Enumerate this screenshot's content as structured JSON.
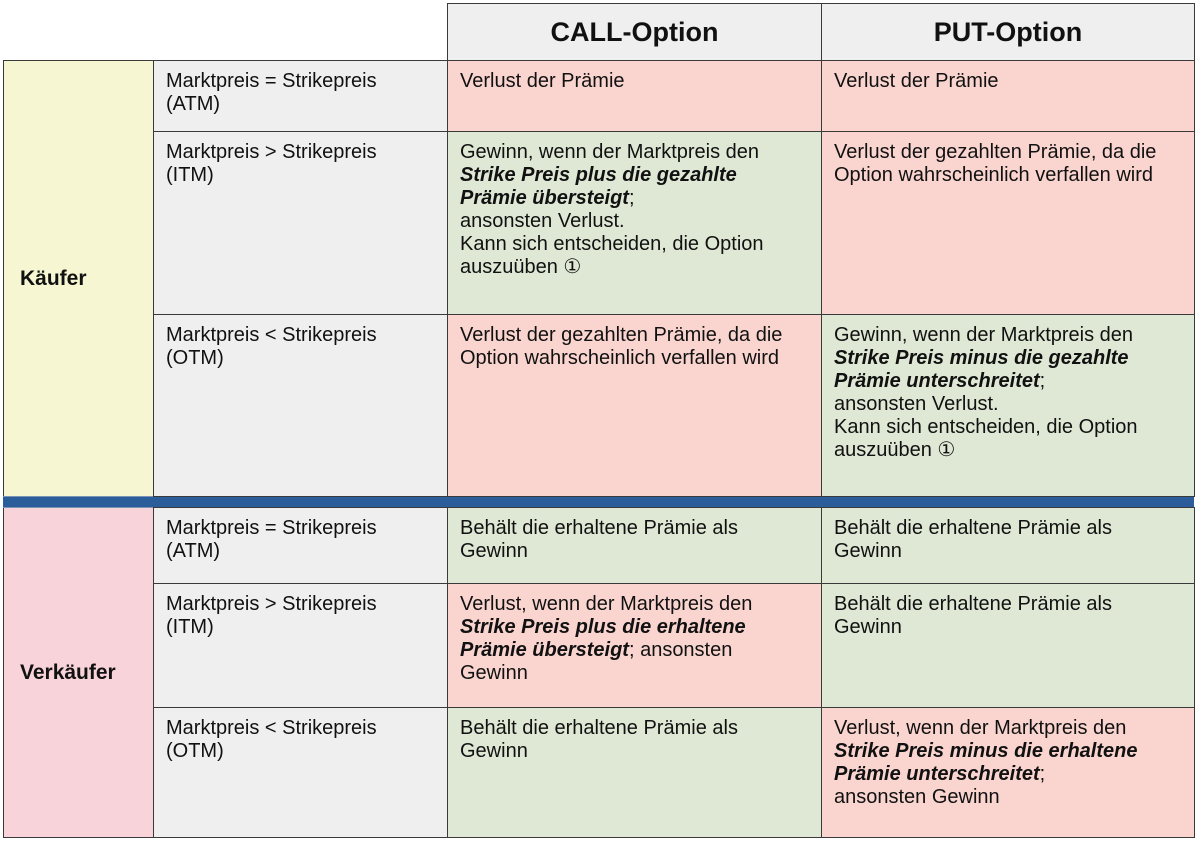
{
  "header": {
    "call": "CALL-Option",
    "put": "PUT-Option"
  },
  "buyer": {
    "label": "Käufer",
    "rows": [
      {
        "condition": [
          "Marktpreis = Strikepreis",
          "(ATM)"
        ],
        "call": [
          [
            {
              "t": "Verlust",
              "s": "b"
            },
            {
              "t": " der Prämie"
            }
          ]
        ],
        "put": [
          [
            {
              "t": "Verlust",
              "s": "b"
            },
            {
              "t": " der Prämie"
            }
          ]
        ]
      },
      {
        "condition": [
          "Marktpreis > Strikepreis",
          "(ITM)"
        ],
        "call": [
          [
            {
              "t": "Gewinn",
              "s": "b"
            },
            {
              "t": ", wenn der Marktpreis den"
            }
          ],
          [
            {
              "t": "Strike Preis plus die gezahlte",
              "s": "bi"
            }
          ],
          [
            {
              "t": "Prämie übersteigt",
              "s": "bi"
            },
            {
              "t": ";"
            }
          ],
          [
            {
              "t": "ansonsten "
            },
            {
              "t": "Verlust",
              "s": "b"
            },
            {
              "t": "."
            }
          ],
          [
            {
              "t": "Kann sich entscheiden, die Option"
            }
          ],
          [
            {
              "t": "auszuüben ①"
            }
          ]
        ],
        "put": [
          [
            {
              "t": "Verlust",
              "s": "b"
            },
            {
              "t": " der gezahlten Prämie, da die"
            }
          ],
          [
            {
              "t": "Option wahrscheinlich verfallen wird"
            }
          ]
        ]
      },
      {
        "condition": [
          "Marktpreis < Strikepreis",
          "(OTM)"
        ],
        "call": [
          [
            {
              "t": "Verlust",
              "s": "b"
            },
            {
              "t": " der gezahlten Prämie, da die"
            }
          ],
          [
            {
              "t": "Option wahrscheinlich verfallen wird"
            }
          ]
        ],
        "put": [
          [
            {
              "t": "Gewinn",
              "s": "b"
            },
            {
              "t": ", wenn der Marktpreis den"
            }
          ],
          [
            {
              "t": "Strike Preis minus die gezahlte",
              "s": "bi"
            }
          ],
          [
            {
              "t": "Prämie unterschreitet",
              "s": "bi"
            },
            {
              "t": ";"
            }
          ],
          [
            {
              "t": "ansonsten "
            },
            {
              "t": "Verlust",
              "s": "b"
            },
            {
              "t": "."
            }
          ],
          [
            {
              "t": "Kann sich entscheiden, die Option"
            }
          ],
          [
            {
              "t": "auszuüben ①"
            }
          ]
        ]
      }
    ]
  },
  "seller": {
    "label": "Verkäufer",
    "rows": [
      {
        "condition": [
          "Marktpreis = Strikepreis",
          "(ATM)"
        ],
        "call": [
          [
            {
              "t": "Behält die erhaltene Prämie als"
            }
          ],
          [
            {
              "t": "Gewinn",
              "s": "b"
            }
          ]
        ],
        "put": [
          [
            {
              "t": "Behält die erhaltene Prämie als"
            }
          ],
          [
            {
              "t": "Gewinn",
              "s": "b"
            }
          ]
        ]
      },
      {
        "condition": [
          "Marktpreis > Strikepreis",
          "(ITM)"
        ],
        "call": [
          [
            {
              "t": "Verlust",
              "s": "b"
            },
            {
              "t": ", wenn der Marktpreis den"
            }
          ],
          [
            {
              "t": "Strike Preis plus die erhaltene",
              "s": "bi"
            }
          ],
          [
            {
              "t": "Prämie übersteigt",
              "s": "bi"
            },
            {
              "t": "; ansonsten"
            }
          ],
          [
            {
              "t": "Gewinn",
              "s": "b"
            }
          ]
        ],
        "put": [
          [
            {
              "t": "Behält die erhaltene Prämie als"
            }
          ],
          [
            {
              "t": "Gewinn",
              "s": "b"
            }
          ]
        ]
      },
      {
        "condition": [
          "Marktpreis < Strikepreis",
          "(OTM)"
        ],
        "call": [
          [
            {
              "t": "Behält die erhaltene Prämie als"
            }
          ],
          [
            {
              "t": "Gewinn",
              "s": "b"
            }
          ]
        ],
        "put": [
          [
            {
              "t": "Verlust",
              "s": "b"
            },
            {
              "t": ", wenn der Marktpreis den"
            }
          ],
          [
            {
              "t": "Strike Preis minus die erhaltene",
              "s": "bi"
            }
          ],
          [
            {
              "t": "Prämie unterschreitet",
              "s": "bi"
            },
            {
              "t": ";"
            }
          ],
          [
            {
              "t": "ansonsten "
            },
            {
              "t": "Gewinn",
              "s": "b"
            }
          ]
        ]
      }
    ]
  },
  "colors": {
    "buyer": "#f6f7d2",
    "seller": "#f9d3da",
    "loss": "#fad5d0",
    "gain": "#dfe8d5",
    "divider": "#2a5d9a"
  },
  "cell_tone": {
    "buyer": [
      [
        "loss",
        "loss"
      ],
      [
        "gain",
        "loss"
      ],
      [
        "loss",
        "gain"
      ]
    ],
    "seller": [
      [
        "gain",
        "gain"
      ],
      [
        "loss",
        "gain"
      ],
      [
        "gain",
        "loss"
      ]
    ]
  }
}
